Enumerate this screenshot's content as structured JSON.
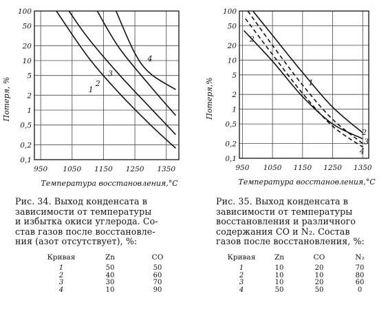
{
  "chart_data": [
    {
      "type": "line",
      "x_axis": {
        "label": "Температура восстановления,°C",
        "ticks": [
          950,
          1050,
          1150,
          1250,
          1350
        ],
        "range": [
          930,
          1390
        ]
      },
      "y_axis": {
        "label": "Потеря, %",
        "scale": "log",
        "ticks": [
          100,
          50,
          20,
          10,
          5,
          2,
          1,
          0.5,
          0.2,
          0.1
        ],
        "tick_labels": [
          "100",
          "50",
          "20",
          "10",
          "5",
          "2",
          "1",
          "0,5",
          "0,2",
          "0,1"
        ],
        "range": [
          0.1,
          100
        ]
      },
      "grid": true,
      "series": [
        {
          "name": "1",
          "style": "solid",
          "points": [
            [
              1000,
              100
            ],
            [
              1100,
              12
            ],
            [
              1200,
              2.2
            ],
            [
              1300,
              0.5
            ],
            [
              1380,
              0.17
            ]
          ]
        },
        {
          "name": "2",
          "style": "solid",
          "points": [
            [
              1040,
              100
            ],
            [
              1100,
              29
            ],
            [
              1200,
              5.2
            ],
            [
              1300,
              1.1
            ],
            [
              1380,
              0.32
            ]
          ]
        },
        {
          "name": "3",
          "style": "solid",
          "points": [
            [
              1130,
              100
            ],
            [
              1200,
              18
            ],
            [
              1300,
              3
            ],
            [
              1380,
              0.78
            ]
          ]
        },
        {
          "name": "4",
          "style": "solid",
          "points": [
            [
              1190,
              100
            ],
            [
              1250,
              14
            ],
            [
              1300,
              5.4
            ],
            [
              1380,
              2.6
            ]
          ]
        }
      ],
      "curve_labels": [
        {
          "text": "1",
          "at": [
            1110,
            2.6
          ]
        },
        {
          "text": "2",
          "at": [
            1132,
            3.5
          ]
        },
        {
          "text": "3",
          "at": [
            1172,
            5.5
          ]
        },
        {
          "text": "4",
          "at": [
            1298,
            11
          ]
        }
      ]
    },
    {
      "type": "line",
      "x_axis": {
        "label": "Температура восстановления,°C",
        "ticks": [
          950,
          1050,
          1150,
          1250,
          1350
        ],
        "range": [
          940,
          1370
        ]
      },
      "y_axis": {
        "label": "Потеря,%",
        "scale": "log",
        "ticks": [
          100,
          50,
          20,
          10,
          5,
          2,
          1,
          0.5,
          0.2,
          0.1
        ],
        "tick_labels": [
          "100",
          "50",
          "20",
          "10",
          "5",
          "2",
          "1",
          "0,5",
          "0,2",
          "0,1"
        ],
        "range": [
          0.1,
          100
        ]
      },
      "grid": true,
      "series": [
        {
          "name": "1",
          "style": "solid",
          "points": [
            [
              985,
              100
            ],
            [
              1050,
              32
            ],
            [
              1150,
              5.6
            ],
            [
              1250,
              1.1
            ],
            [
              1350,
              0.33
            ]
          ]
        },
        {
          "name": "2",
          "style": "solid",
          "points": [
            [
              955,
              40
            ],
            [
              1050,
              9.5
            ],
            [
              1150,
              1.8
            ],
            [
              1250,
              0.5
            ],
            [
              1350,
              0.25
            ]
          ]
        },
        {
          "name": "3",
          "style": "dashed",
          "points": [
            [
              968,
              100
            ],
            [
              1050,
              20
            ],
            [
              1150,
              3.1
            ],
            [
              1250,
              0.62
            ],
            [
              1350,
              0.2
            ]
          ]
        },
        {
          "name": "4",
          "style": "dashed",
          "points": [
            [
              960,
              70
            ],
            [
              1050,
              13
            ],
            [
              1150,
              2.1
            ],
            [
              1250,
              0.45
            ],
            [
              1350,
              0.17
            ]
          ]
        }
      ],
      "curve_labels": [
        {
          "text": "1",
          "at": [
            1178,
            3.5
          ]
        },
        {
          "text": "2",
          "at": [
            982,
            27
          ]
        },
        {
          "text": "2",
          "at": [
            1355,
            0.34
          ]
        },
        {
          "text": "3",
          "at": [
            1362,
            0.22
          ]
        },
        {
          "text": "4",
          "at": [
            1348,
            0.14
          ]
        }
      ]
    }
  ],
  "figure34": {
    "caption_lines": [
      "Рис. 34. Выход конденсата в",
      "зависимости от температуры",
      "и избытка окиси углерода. Со-",
      "став газов после восстановле-",
      "ния (азот отсутствует), %:"
    ],
    "table": {
      "headers": [
        "Кривая",
        "Zn",
        "CO"
      ],
      "rows": [
        [
          "1",
          "50",
          "50"
        ],
        [
          "2",
          "40",
          "60"
        ],
        [
          "3",
          "30",
          "70"
        ],
        [
          "4",
          "10",
          "90"
        ]
      ]
    }
  },
  "figure35": {
    "caption_lines": [
      "Рис. 35. Выход конденсата в",
      "зависимости от температуры",
      "восстановления и различного",
      "содержания CO и N₂. Состав",
      "газов после восстановления, %:"
    ],
    "table": {
      "headers": [
        "Кривая",
        "Zn",
        "CO",
        "N₂"
      ],
      "rows": [
        [
          "1",
          "10",
          "20",
          "70"
        ],
        [
          "2",
          "10",
          "10",
          "80"
        ],
        [
          "3",
          "10",
          "20",
          "60"
        ],
        [
          "4",
          "50",
          "50",
          "0"
        ]
      ]
    }
  }
}
